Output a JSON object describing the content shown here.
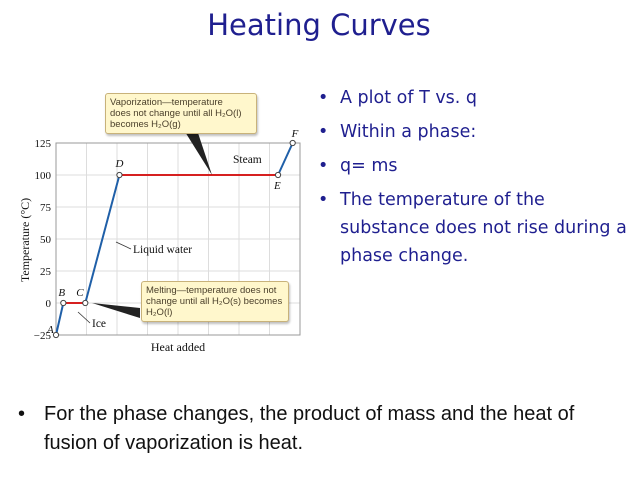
{
  "slide": {
    "title": "Heating Curves",
    "bullets": [
      "A plot of T vs. q",
      "Within a phase:",
      "q= ms",
      "The temperature of the substance does not rise during a phase change."
    ],
    "footer": "For the phase changes, the product of mass and the heat of fusion of vaporization is heat.",
    "footer_bullet": "•"
  },
  "chart_data": {
    "type": "line",
    "title": "",
    "xlabel": "Heat added",
    "ylabel": "Temperature (°C)",
    "ylim": [
      -25,
      125
    ],
    "yticks": [
      "125",
      "100",
      "75",
      "50",
      "25",
      "0",
      "−25"
    ],
    "xlim": [
      0,
      100
    ],
    "points": [
      {
        "label": "A",
        "x": 0,
        "y": -25
      },
      {
        "label": "B",
        "x": 3,
        "y": 0
      },
      {
        "label": "C",
        "x": 12,
        "y": 0
      },
      {
        "label": "D",
        "x": 26,
        "y": 100
      },
      {
        "label": "E",
        "x": 91,
        "y": 100
      },
      {
        "label": "F",
        "x": 97,
        "y": 125
      }
    ],
    "phase_labels": {
      "ice": "Ice",
      "liquid": "Liquid water",
      "steam": "Steam"
    },
    "callouts": {
      "vaporization": [
        "Vaporization—temperature",
        "does not change until all H₂O(l)",
        "becomes H₂O(g)"
      ],
      "melting": [
        "Melting—temperature does not",
        "change until all H₂O(s) becomes",
        "H₂O(l)"
      ]
    },
    "colors": {
      "rising": "#1f5fa8",
      "plateau": "#d62020",
      "grid": "#dddddd",
      "callout_fill": "#fff7cc"
    }
  }
}
